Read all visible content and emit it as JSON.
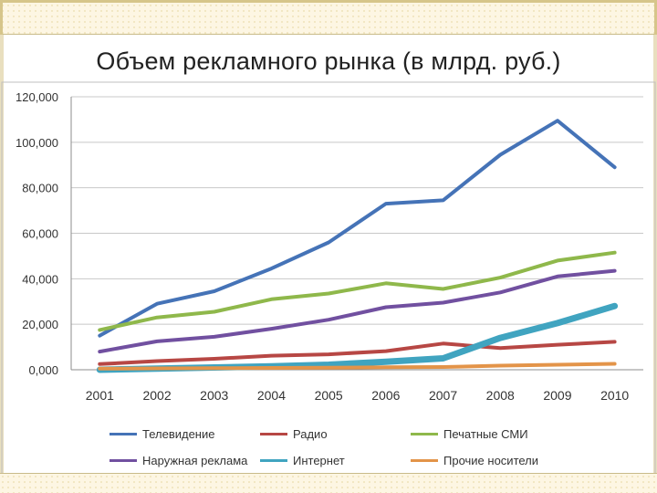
{
  "chart_data": {
    "type": "line",
    "title": "Объем рекламного рынка (в млрд. руб.)",
    "categories": [
      "2001",
      "2002",
      "2003",
      "2004",
      "2005",
      "2006",
      "2007",
      "2008",
      "2009",
      "2010"
    ],
    "y_ticks": [
      "0,000",
      "20,000",
      "40,000",
      "60,000",
      "80,000",
      "100,000",
      "120,000"
    ],
    "ylim": [
      0,
      120000
    ],
    "grid": "horizontal",
    "legend_position": "bottom",
    "series": [
      {
        "name": "Телевидение",
        "color": "#4573b7",
        "values": [
          15000,
          29000,
          34500,
          44500,
          56000,
          73000,
          74500,
          94500,
          109500,
          89000
        ]
      },
      {
        "name": "Радио",
        "color": "#b74744",
        "values": [
          2500,
          3800,
          4800,
          6200,
          6800,
          8200,
          11500,
          9500,
          11000,
          12300
        ]
      },
      {
        "name": "Печатные СМИ",
        "color": "#8fb84b",
        "values": [
          17500,
          23000,
          25500,
          31000,
          33500,
          38000,
          35500,
          40500,
          48000,
          51500
        ]
      },
      {
        "name": "Наружная реклама",
        "color": "#7150a0",
        "values": [
          8000,
          12500,
          14500,
          18000,
          22000,
          27500,
          29500,
          34000,
          41000,
          43500
        ]
      },
      {
        "name": "Интернет",
        "color": "#40a4c0",
        "values": [
          0,
          500,
          1000,
          1500,
          2200,
          3500,
          5000,
          14000,
          20500,
          28000
        ]
      },
      {
        "name": "Прочие носители",
        "color": "#e39449",
        "values": [
          500,
          600,
          700,
          800,
          900,
          1100,
          1200,
          1800,
          2200,
          2600
        ]
      }
    ]
  }
}
